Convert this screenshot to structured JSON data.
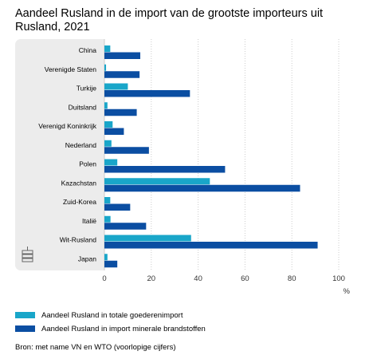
{
  "title": "Aandeel Rusland in de import van de grootste importeurs uit Rusland, 2021",
  "colors": {
    "series1": "#19a6c9",
    "series2": "#0b4ea2",
    "panel": "#ececec",
    "grid": "#cccccc",
    "tick": "#333333"
  },
  "icon": "database-icon",
  "chart_data": {
    "type": "bar",
    "orientation": "horizontal",
    "categories": [
      "China",
      "Verenigde Staten",
      "Turkije",
      "Duitsland",
      "Verenigd Koninkrijk",
      "Nederland",
      "Polen",
      "Kazachstan",
      "Zuid-Korea",
      "Italië",
      "Wit-Rusland",
      "Japan"
    ],
    "series": [
      {
        "name": "Aandeel Rusland in totale goederenimport",
        "values": [
          2.5,
          0.7,
          10,
          1.3,
          3.5,
          3.0,
          5.5,
          45,
          2.5,
          2.6,
          37,
          1.3
        ]
      },
      {
        "name": "Aandeel Rusland in import minerale brandstoffen",
        "values": [
          15.3,
          15.0,
          36.5,
          13.8,
          8.3,
          19.0,
          51.5,
          83.5,
          11.0,
          17.8,
          91.0,
          5.5
        ]
      }
    ],
    "xticks": [
      "0",
      "20",
      "40",
      "60",
      "80",
      "100"
    ],
    "xlim": [
      0,
      100
    ],
    "xunit": "%",
    "grid": true
  },
  "source": "Bron: met name VN en WTO (voorlopige cijfers)"
}
